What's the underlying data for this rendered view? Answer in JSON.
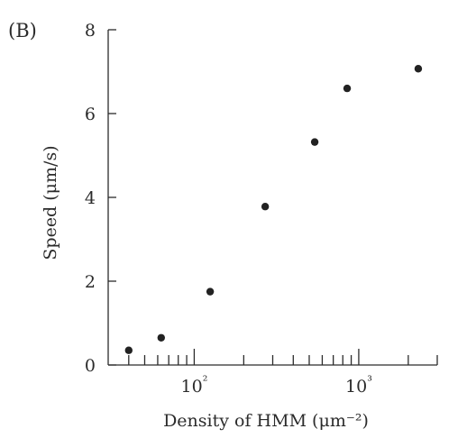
{
  "panel_label": "(B)",
  "chart_data": {
    "type": "scatter",
    "title": "",
    "xlabel": "Density of HMM (μm⁻²)",
    "ylabel": "Speed (μm/s)",
    "x_scale": "log",
    "xlim": [
      30,
      3000
    ],
    "ylim": [
      0,
      8
    ],
    "y_ticks": [
      0,
      2,
      4,
      6,
      8
    ],
    "x_major_ticks": [
      100,
      1000
    ],
    "x_major_tick_labels": [
      "10²",
      "10³"
    ],
    "x_minor_ticks": [
      40,
      50,
      60,
      70,
      80,
      90,
      200,
      300,
      400,
      500,
      600,
      700,
      800,
      900,
      2000,
      3000
    ],
    "grid": false,
    "legend": "none",
    "point_color": "#222222",
    "points": [
      {
        "x": 40,
        "y": 0.35
      },
      {
        "x": 63,
        "y": 0.65
      },
      {
        "x": 125,
        "y": 1.75
      },
      {
        "x": 270,
        "y": 3.78
      },
      {
        "x": 540,
        "y": 5.32
      },
      {
        "x": 850,
        "y": 6.6
      },
      {
        "x": 2300,
        "y": 7.07
      }
    ]
  }
}
